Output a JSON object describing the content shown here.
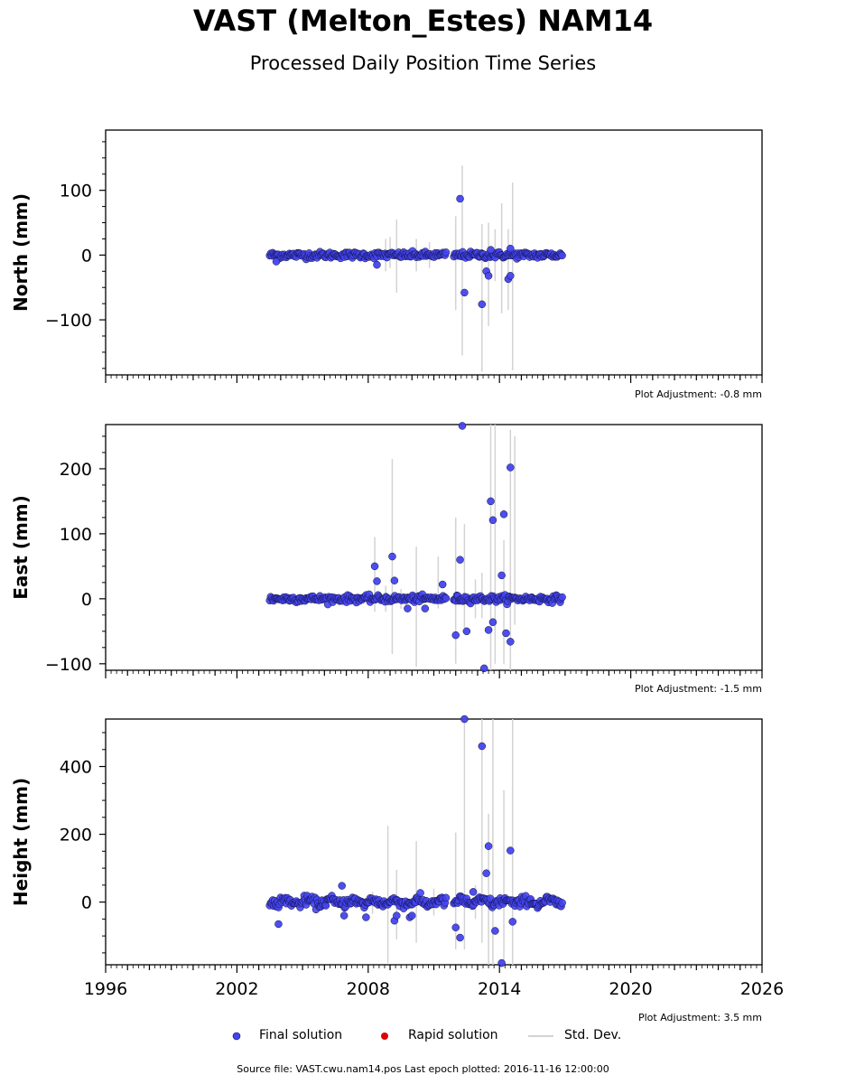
{
  "header": {
    "title": "VAST (Melton_Estes) NAM14",
    "subtitle": "Processed Daily Position Time Series"
  },
  "legend": {
    "final_label": "Final solution",
    "rapid_label": "Rapid solution",
    "std_label": "Std. Dev.",
    "final_color": "#4444ee",
    "rapid_color": "#dd0000",
    "std_color": "#d3d3d3"
  },
  "footer": {
    "source": "Source file: VAST.cwu.nam14.pos  Last epoch plotted: 2016-11-16 12:00:00"
  },
  "chart_data": [
    {
      "type": "scatter",
      "ylabel": "North (mm)",
      "adjustment": "Plot Adjustment: -0.8 mm",
      "xlim": [
        1996,
        2026
      ],
      "ylim": [
        -185,
        193
      ],
      "yticks": [
        -100,
        0,
        100
      ],
      "xticks": [
        1996,
        2002,
        2008,
        2014,
        2020,
        2026
      ],
      "x_tick_labels_shown": false,
      "data_span": [
        2003.5,
        2016.88
      ],
      "noise_sd": 2.5,
      "series": [
        {
          "name": "Final solution",
          "points": [
            [
              2003.8,
              -10
            ],
            [
              2008.4,
              -15
            ],
            [
              2012.2,
              87
            ],
            [
              2012.4,
              -58
            ],
            [
              2013.2,
              -76
            ],
            [
              2013.4,
              -25
            ],
            [
              2013.5,
              -32
            ],
            [
              2013.6,
              8
            ],
            [
              2014.4,
              -37
            ],
            [
              2014.5,
              -32
            ],
            [
              2014.5,
              10
            ]
          ]
        }
      ],
      "std_dev_bars": [
        [
          2009.3,
          -58,
          55
        ],
        [
          2012.0,
          -85,
          60
        ],
        [
          2012.3,
          -155,
          138
        ],
        [
          2013.2,
          -180,
          48
        ],
        [
          2013.5,
          -110,
          50
        ],
        [
          2014.1,
          -90,
          80
        ],
        [
          2014.4,
          -85,
          40
        ],
        [
          2014.6,
          -178,
          112
        ],
        [
          2008.8,
          -25,
          25
        ],
        [
          2009.0,
          -20,
          28
        ],
        [
          2010.2,
          -25,
          25
        ],
        [
          2010.8,
          -20,
          20
        ],
        [
          2013.8,
          -40,
          40
        ]
      ]
    },
    {
      "type": "scatter",
      "ylabel": "East (mm)",
      "adjustment": "Plot Adjustment: -1.5 mm",
      "xlim": [
        1996,
        2026
      ],
      "ylim": [
        -110,
        268
      ],
      "yticks": [
        -100,
        0,
        100,
        200
      ],
      "xticks": [
        1996,
        2002,
        2008,
        2014,
        2020,
        2026
      ],
      "x_tick_labels_shown": false,
      "data_span": [
        2003.5,
        2016.88
      ],
      "noise_sd": 2.5,
      "series": [
        {
          "name": "Final solution",
          "points": [
            [
              2008.3,
              50
            ],
            [
              2008.4,
              27
            ],
            [
              2009.1,
              65
            ],
            [
              2009.2,
              28
            ],
            [
              2009.8,
              -15
            ],
            [
              2010.6,
              -15
            ],
            [
              2011.4,
              22
            ],
            [
              2012.0,
              -56
            ],
            [
              2012.2,
              60
            ],
            [
              2012.5,
              -50
            ],
            [
              2013.3,
              -107
            ],
            [
              2013.5,
              -48
            ],
            [
              2013.6,
              150
            ],
            [
              2013.7,
              121
            ],
            [
              2013.7,
              -36
            ],
            [
              2014.1,
              36
            ],
            [
              2014.2,
              130
            ],
            [
              2014.3,
              -53
            ],
            [
              2014.5,
              202
            ],
            [
              2014.5,
              -66
            ],
            [
              2012.3,
              266
            ]
          ]
        }
      ],
      "std_dev_bars": [
        [
          2008.3,
          -20,
          95
        ],
        [
          2009.1,
          -85,
          215
        ],
        [
          2010.2,
          -105,
          80
        ],
        [
          2011.2,
          -15,
          65
        ],
        [
          2012.0,
          -100,
          125
        ],
        [
          2012.4,
          -45,
          115
        ],
        [
          2013.6,
          -110,
          270
        ],
        [
          2013.8,
          -100,
          270
        ],
        [
          2014.2,
          -100,
          90
        ],
        [
          2014.5,
          -110,
          260
        ],
        [
          2014.7,
          -40,
          250
        ],
        [
          2012.9,
          -30,
          30
        ],
        [
          2013.2,
          -30,
          40
        ],
        [
          2008.8,
          -20,
          20
        ],
        [
          2009.5,
          -15,
          15
        ]
      ]
    },
    {
      "type": "scatter",
      "ylabel": "Height (mm)",
      "adjustment": "Plot Adjustment: 3.5 mm",
      "xlim": [
        1996,
        2026
      ],
      "ylim": [
        -185,
        540
      ],
      "yticks": [
        0,
        200,
        400
      ],
      "xticks": [
        1996,
        2002,
        2008,
        2014,
        2020,
        2026
      ],
      "x_tick_labels_shown": true,
      "data_span": [
        2003.5,
        2016.88
      ],
      "noise_sd": 7,
      "series": [
        {
          "name": "Final solution",
          "points": [
            [
              2003.9,
              -65
            ],
            [
              2006.8,
              48
            ],
            [
              2006.9,
              -40
            ],
            [
              2007.9,
              -45
            ],
            [
              2009.2,
              -55
            ],
            [
              2009.3,
              -40
            ],
            [
              2009.9,
              -45
            ],
            [
              2010.0,
              -40
            ],
            [
              2012.0,
              -75
            ],
            [
              2012.2,
              -105
            ],
            [
              2012.4,
              540
            ],
            [
              2013.2,
              460
            ],
            [
              2013.4,
              85
            ],
            [
              2013.5,
              165
            ],
            [
              2013.8,
              -85
            ],
            [
              2014.1,
              -180
            ],
            [
              2014.5,
              152
            ],
            [
              2014.6,
              -58
            ],
            [
              2012.8,
              30
            ]
          ]
        }
      ],
      "std_dev_bars": [
        [
          2008.9,
          -180,
          225
        ],
        [
          2009.3,
          -110,
          95
        ],
        [
          2010.2,
          -120,
          180
        ],
        [
          2012.0,
          -140,
          205
        ],
        [
          2012.4,
          -140,
          540
        ],
        [
          2013.2,
          -120,
          540
        ],
        [
          2013.5,
          -185,
          260
        ],
        [
          2013.7,
          -185,
          540
        ],
        [
          2014.2,
          -185,
          330
        ],
        [
          2014.6,
          -185,
          540
        ],
        [
          2012.9,
          -50,
          50
        ],
        [
          2011.0,
          -40,
          40
        ],
        [
          2008.2,
          -35,
          30
        ]
      ]
    }
  ]
}
